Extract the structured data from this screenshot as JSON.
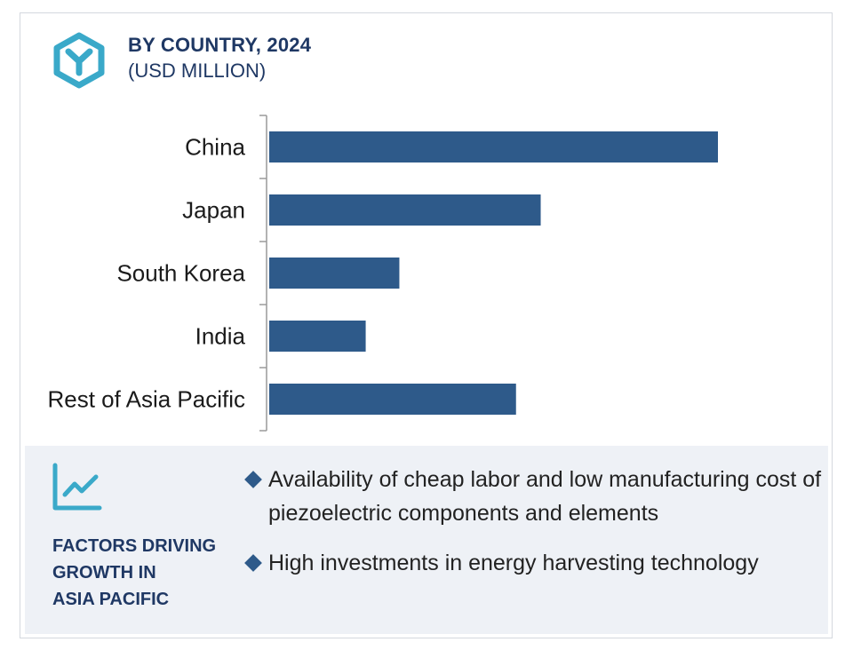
{
  "header": {
    "title": "BY COUNTRY, 2024",
    "subtitle": "(USD MILLION)",
    "logo_icon": "hexagon-y-logo-icon"
  },
  "chart_data": {
    "type": "bar",
    "orientation": "horizontal",
    "title": "BY COUNTRY, 2024",
    "subtitle": "(USD MILLION)",
    "categories": [
      "China",
      "Japan",
      "South Korea",
      "India",
      "Rest of Asia Pacific"
    ],
    "values": [
      100,
      60.5,
      29,
      21.5,
      55
    ],
    "value_scale": "relative (no axis values shown)",
    "xlim": [
      0,
      100
    ],
    "bar_color": "#2e5a8a",
    "grid": false,
    "legend": "none"
  },
  "factors": {
    "icon": "trend-line-chart-icon",
    "title": "FACTORS DRIVING GROWTH IN ASIA PACIFIC",
    "title_lines": [
      "FACTORS DRIVING",
      "GROWTH IN",
      "ASIA PACIFIC"
    ],
    "bullets": [
      "Availability of cheap labor and low manufacturing cost of piezoelectric components and elements",
      "High investments in energy harvesting technology"
    ]
  },
  "colors": {
    "accent": "#1f3864",
    "bar": "#2e5a8a",
    "icon": "#3aa9c9",
    "panel": "#eef1f6"
  }
}
